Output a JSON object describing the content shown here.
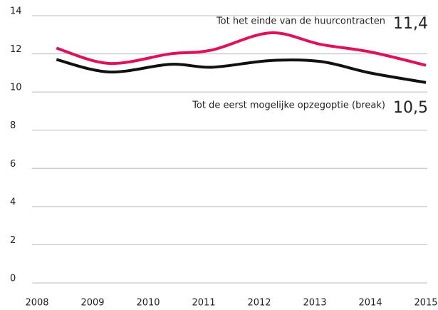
{
  "chart_data": {
    "type": "line",
    "x": [
      2008.35,
      2009.3,
      2010.4,
      2011.15,
      2012.2,
      2013.1,
      2014.0,
      2015.0
    ],
    "series": [
      {
        "name": "Tot het einde van de huurcontracten",
        "color": "#e0105a",
        "values": [
          12.3,
          11.5,
          12.0,
          12.2,
          13.1,
          12.5,
          12.1,
          11.4
        ],
        "value_labels": [
          null,
          null,
          null,
          null,
          null,
          null,
          null,
          "11,4"
        ]
      },
      {
        "name": "Tot de eerst mogelijke opzegoptie (break)",
        "color": "#111111",
        "values": [
          11.7,
          11.05,
          11.45,
          11.3,
          11.65,
          11.6,
          11.0,
          10.5
        ],
        "value_labels": [
          null,
          null,
          null,
          null,
          null,
          null,
          null,
          "10,5"
        ]
      }
    ],
    "xlim": [
      2008,
      2015
    ],
    "xticks": [
      2008,
      2009,
      2010,
      2011,
      2012,
      2013,
      2014,
      2015
    ],
    "ylim": [
      0,
      14
    ],
    "yticks": [
      0,
      2,
      4,
      6,
      8,
      10,
      12,
      14
    ],
    "grid": true
  }
}
